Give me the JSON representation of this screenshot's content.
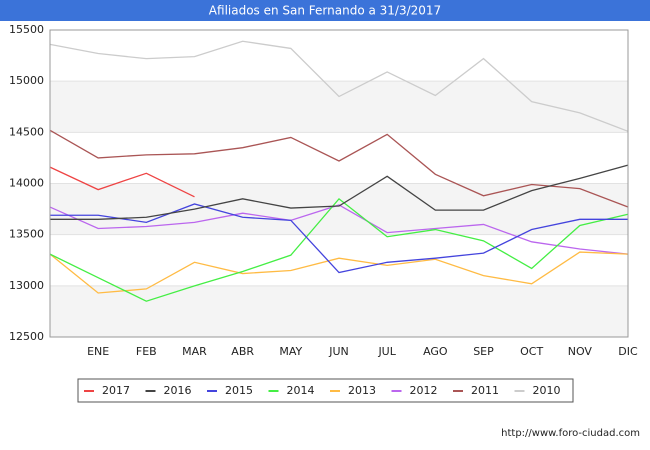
{
  "chart_data": {
    "type": "line",
    "title": "Afiliados en San Fernando a 31/3/2017",
    "categories": [
      null,
      "ENE",
      "FEB",
      "MAR",
      "ABR",
      "MAY",
      "JUN",
      "JUL",
      "AGO",
      "SEP",
      "OCT",
      "NOV",
      "DIC"
    ],
    "series": [
      {
        "name": "2017",
        "color": "#ee4444",
        "values": [
          14160,
          13940,
          14100,
          13870,
          null,
          null,
          null,
          null,
          null,
          null,
          null,
          null,
          null
        ]
      },
      {
        "name": "2016",
        "color": "#444444",
        "values": [
          13650,
          13650,
          13670,
          13750,
          13850,
          13760,
          13780,
          14070,
          13740,
          13740,
          13930,
          14050,
          14180
        ]
      },
      {
        "name": "2015",
        "color": "#4444dd",
        "values": [
          13690,
          13690,
          13620,
          13800,
          13670,
          13640,
          13130,
          13230,
          13270,
          13320,
          13550,
          13650,
          13650
        ]
      },
      {
        "name": "2014",
        "color": "#44ee44",
        "values": [
          13310,
          13080,
          12850,
          13000,
          13140,
          13300,
          13850,
          13480,
          13550,
          13440,
          13170,
          13590,
          13700
        ]
      },
      {
        "name": "2013",
        "color": "#ffbb44",
        "values": [
          13310,
          12930,
          12970,
          13230,
          13120,
          13150,
          13270,
          13200,
          13260,
          13100,
          13020,
          13330,
          13310
        ]
      },
      {
        "name": "2012",
        "color": "#bb66ee",
        "values": [
          13770,
          13560,
          13580,
          13620,
          13710,
          13640,
          13790,
          13520,
          13560,
          13600,
          13430,
          13360,
          13310
        ]
      },
      {
        "name": "2011",
        "color": "#aa5555",
        "values": [
          14520,
          14250,
          14280,
          14290,
          14350,
          14450,
          14220,
          14480,
          14090,
          13880,
          13990,
          13950,
          13770
        ]
      },
      {
        "name": "2010",
        "color": "#cccccc",
        "values": [
          15360,
          15270,
          15220,
          15240,
          15390,
          15320,
          14850,
          15090,
          14860,
          15220,
          14800,
          14690,
          14510
        ]
      }
    ],
    "ylim": [
      12500,
      15500
    ],
    "yticks": [
      12500,
      13000,
      13500,
      14000,
      14500,
      15000,
      15500
    ],
    "grid": true,
    "footer": "http://www.foro-ciudad.com"
  }
}
